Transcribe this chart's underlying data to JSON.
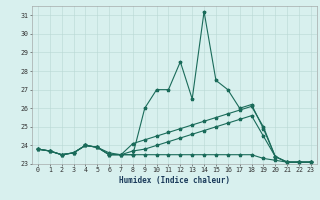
{
  "title": "",
  "xlabel": "Humidex (Indice chaleur)",
  "x_values": [
    0,
    1,
    2,
    3,
    4,
    5,
    6,
    7,
    8,
    9,
    10,
    11,
    12,
    13,
    14,
    15,
    16,
    17,
    18,
    19,
    20,
    21,
    22,
    23
  ],
  "series": [
    [
      23.8,
      23.7,
      23.5,
      23.6,
      24.0,
      23.9,
      23.5,
      23.5,
      23.5,
      26.0,
      27.0,
      27.0,
      28.5,
      26.5,
      31.2,
      27.5,
      27.0,
      26.0,
      26.2,
      24.9,
      23.4,
      23.1,
      23.1,
      23.1
    ],
    [
      23.8,
      23.7,
      23.5,
      23.6,
      24.0,
      23.9,
      23.6,
      23.5,
      24.1,
      24.3,
      24.5,
      24.7,
      24.9,
      25.1,
      25.3,
      25.5,
      25.7,
      25.9,
      26.1,
      25.0,
      23.4,
      23.1,
      23.1,
      23.1
    ],
    [
      23.8,
      23.7,
      23.5,
      23.6,
      24.0,
      23.9,
      23.5,
      23.5,
      23.7,
      23.8,
      24.0,
      24.2,
      24.4,
      24.6,
      24.8,
      25.0,
      25.2,
      25.4,
      25.6,
      24.5,
      23.4,
      23.1,
      23.1,
      23.1
    ],
    [
      23.8,
      23.7,
      23.5,
      23.6,
      24.0,
      23.9,
      23.5,
      23.5,
      23.5,
      23.5,
      23.5,
      23.5,
      23.5,
      23.5,
      23.5,
      23.5,
      23.5,
      23.5,
      23.5,
      23.3,
      23.2,
      23.1,
      23.1,
      23.1
    ]
  ],
  "line_color": "#1a6b5a",
  "bg_color": "#d8f0ee",
  "grid_color": "#b8d8d4",
  "ylim": [
    23,
    31.5
  ],
  "yticks": [
    23,
    24,
    25,
    26,
    27,
    28,
    29,
    30,
    31
  ],
  "marker": "*",
  "markersize": 2.5,
  "linewidth": 0.8,
  "xlabel_fontsize": 5.5,
  "tick_fontsize": 4.8
}
